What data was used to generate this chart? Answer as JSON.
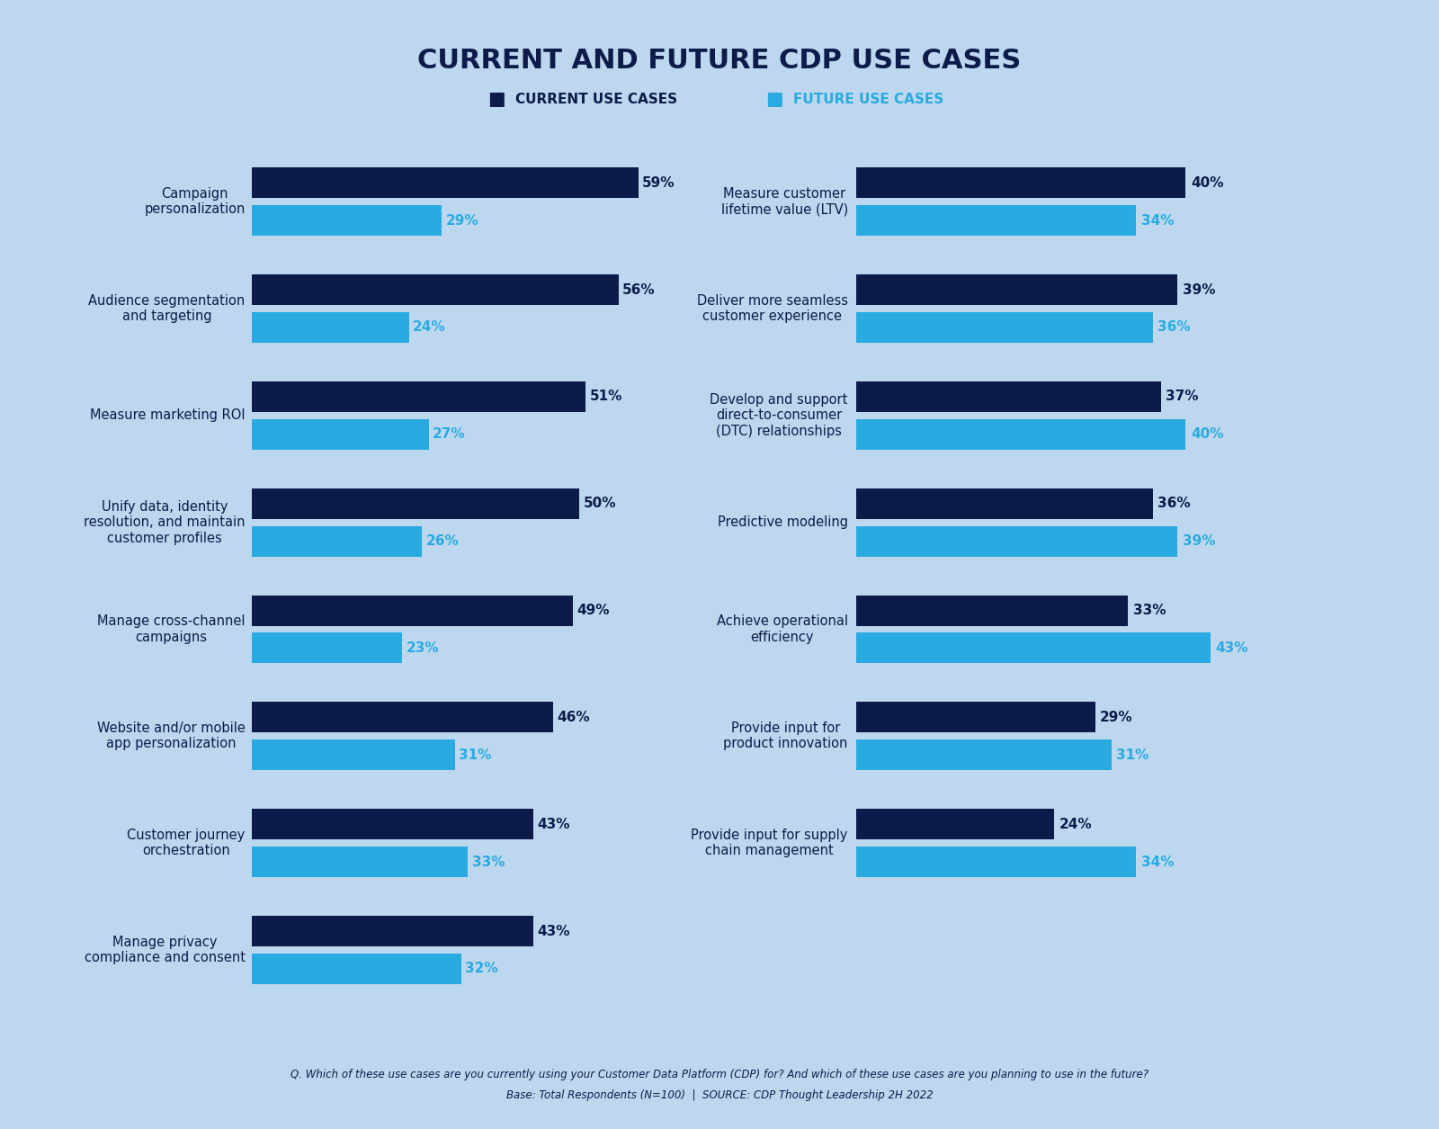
{
  "title": "CURRENT AND FUTURE CDP USE CASES",
  "background_color": "#BDD7EE",
  "dark_blue": "#0D1B4B",
  "light_blue": "#29ABE2",
  "legend_current": "CURRENT USE CASES",
  "legend_future": "FUTURE USE CASES",
  "left_categories": [
    "Campaign\npersonalization",
    "Audience segmentation\nand targeting",
    "Measure marketing ROI",
    "Unify data, identity\nresolution, and maintain\ncustomer profiles",
    "Manage cross-channel\ncampaigns",
    "Website and/or mobile\napp personalization",
    "Customer journey\norchestration",
    "Manage privacy\ncompliance and consent"
  ],
  "left_current": [
    59,
    56,
    51,
    50,
    49,
    46,
    43,
    43
  ],
  "left_future": [
    29,
    24,
    27,
    26,
    23,
    31,
    33,
    32
  ],
  "right_categories": [
    "Measure customer\nlifetime value (LTV)",
    "Deliver more seamless\ncustomer experience",
    "Develop and support\ndirect-to-consumer\n(DTC) relationships",
    "Predictive modeling",
    "Achieve operational\nefficiency",
    "Provide input for\nproduct innovation",
    "Provide input for supply\nchain management"
  ],
  "right_current": [
    40,
    39,
    37,
    36,
    33,
    29,
    24
  ],
  "right_future": [
    34,
    36,
    40,
    39,
    43,
    31,
    34
  ],
  "footnote_line1": "Q. Which of these use cases are you currently using your Customer Data Platform (CDP) for? And which of these use cases are you planning to use in the future?",
  "footnote_line2": "Base: Total Respondents (N=100)  |  SOURCE: CDP Thought Leadership 2H 2022"
}
